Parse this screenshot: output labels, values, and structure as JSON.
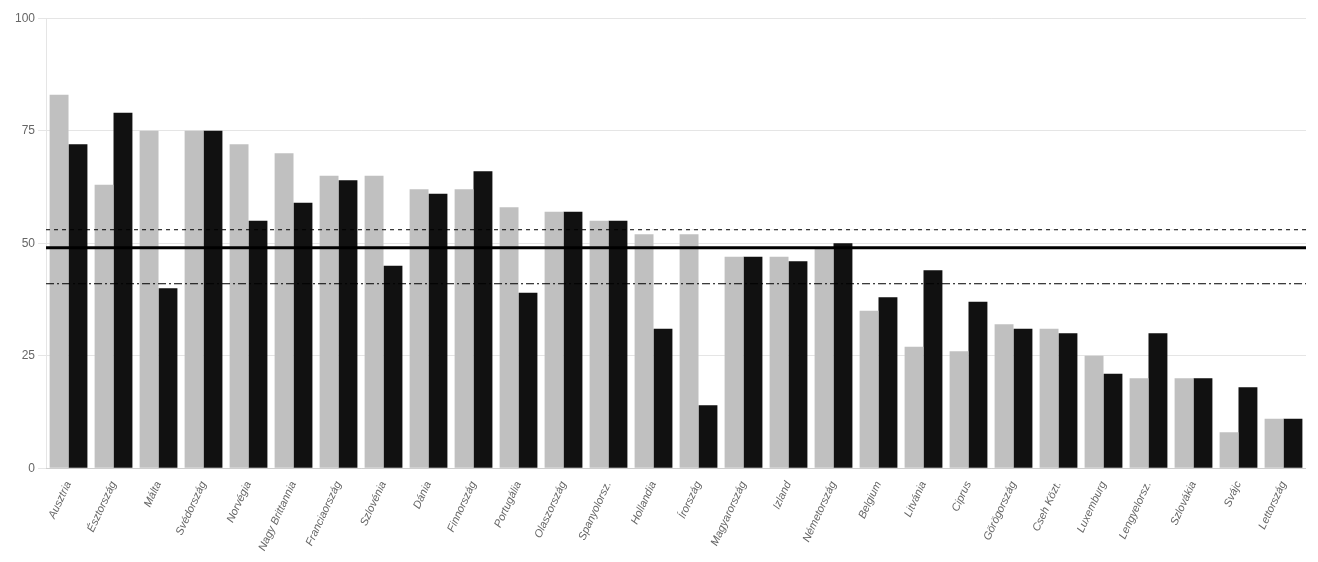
{
  "chart_data": {
    "type": "bar",
    "categories": [
      "Ausztria",
      "Észtország",
      "Málta",
      "Svédország",
      "Norvégia",
      "Nagy Brittannia",
      "Franciaország",
      "Szlovénia",
      "Dánia",
      "Finnország",
      "Portugália",
      "Olaszország",
      "Spanyolorsz.",
      "Hollandia",
      "Írország",
      "Magyarország",
      "Izland",
      "Németország",
      "Belgium",
      "Litvánia",
      "Ciprus",
      "Görögország",
      "Cseh Közt.",
      "Luxemburg",
      "Lengyelorsz.",
      "Szlovákia",
      "Svájc",
      "Lettország"
    ],
    "series": [
      {
        "color": "#c0c0c0",
        "values": [
          83,
          63,
          75,
          75,
          72,
          70,
          65,
          65,
          62,
          62,
          58,
          57,
          55,
          52,
          52,
          47,
          47,
          49,
          35,
          27,
          26,
          32,
          31,
          25,
          20,
          20,
          8,
          11
        ]
      },
      {
        "color": "#111111",
        "values": [
          72,
          79,
          40,
          75,
          55,
          59,
          64,
          45,
          61,
          66,
          39,
          57,
          55,
          31,
          14,
          47,
          46,
          50,
          38,
          44,
          37,
          31,
          30,
          21,
          30,
          20,
          18,
          11
        ]
      }
    ],
    "reference_lines": [
      {
        "value": 49,
        "color": "#000000",
        "line_style": "solid"
      },
      {
        "value": 53,
        "color": "#000000",
        "line_style": "dashed"
      },
      {
        "value": 41,
        "color": "#000000",
        "line_style": "dashdot"
      }
    ],
    "ylim": [
      0,
      100
    ],
    "yticks": [
      0,
      25,
      50,
      75,
      100
    ],
    "grid": true
  }
}
